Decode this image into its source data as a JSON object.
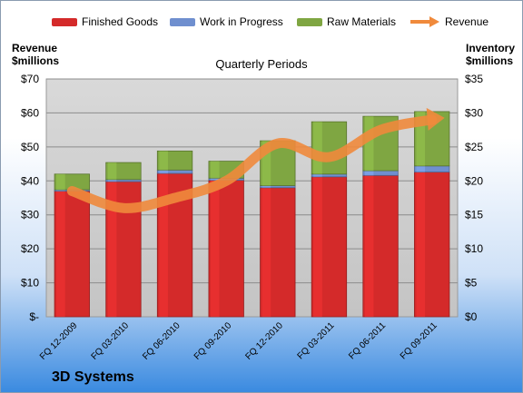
{
  "company_name": "3D Systems",
  "chart_data": {
    "type": "bar",
    "stacked": true,
    "title": "Quarterly Periods",
    "y_left_label": "Revenue $millions",
    "y_left_label_lines": [
      "Revenue",
      "$millions"
    ],
    "y_right_label": "Inventory $millions",
    "y_right_label_lines": [
      "Inventory",
      "$millions"
    ],
    "y_left_ticks": [
      "$-",
      "$10",
      "$20",
      "$30",
      "$40",
      "$50",
      "$60",
      "$70"
    ],
    "y_right_ticks": [
      "$0",
      "$5",
      "$10",
      "$15",
      "$20",
      "$25",
      "$30",
      "$35"
    ],
    "y_left_lim": [
      0,
      70
    ],
    "y_right_lim": [
      0,
      35
    ],
    "grid": true,
    "legend_position": "top",
    "categories": [
      "FQ 12-2009",
      "FQ 03-2010",
      "FQ 06-2010",
      "FQ 09-2010",
      "FQ 12-2010",
      "FQ 03-2011",
      "FQ 06-2011",
      "FQ 09-2011"
    ],
    "series": [
      {
        "name": "Finished Goods",
        "axis": "right",
        "color": "#d42a2a",
        "values": [
          18.5,
          19.9,
          21.1,
          20.1,
          19.0,
          20.6,
          20.8,
          21.3
        ]
      },
      {
        "name": "Work in Progress",
        "axis": "right",
        "color": "#6f8fcf",
        "values": [
          0.2,
          0.3,
          0.5,
          0.3,
          0.3,
          0.4,
          0.7,
          0.9
        ]
      },
      {
        "name": "Raw Materials",
        "axis": "right",
        "color": "#7fa642",
        "values": [
          2.3,
          2.5,
          2.8,
          2.5,
          6.6,
          7.7,
          8.0,
          8.0
        ]
      },
      {
        "name": "Revenue",
        "axis": "left",
        "type": "line",
        "color": "#f08a3c",
        "values": [
          37,
          32,
          35,
          40,
          51,
          47,
          55,
          58
        ]
      }
    ]
  }
}
